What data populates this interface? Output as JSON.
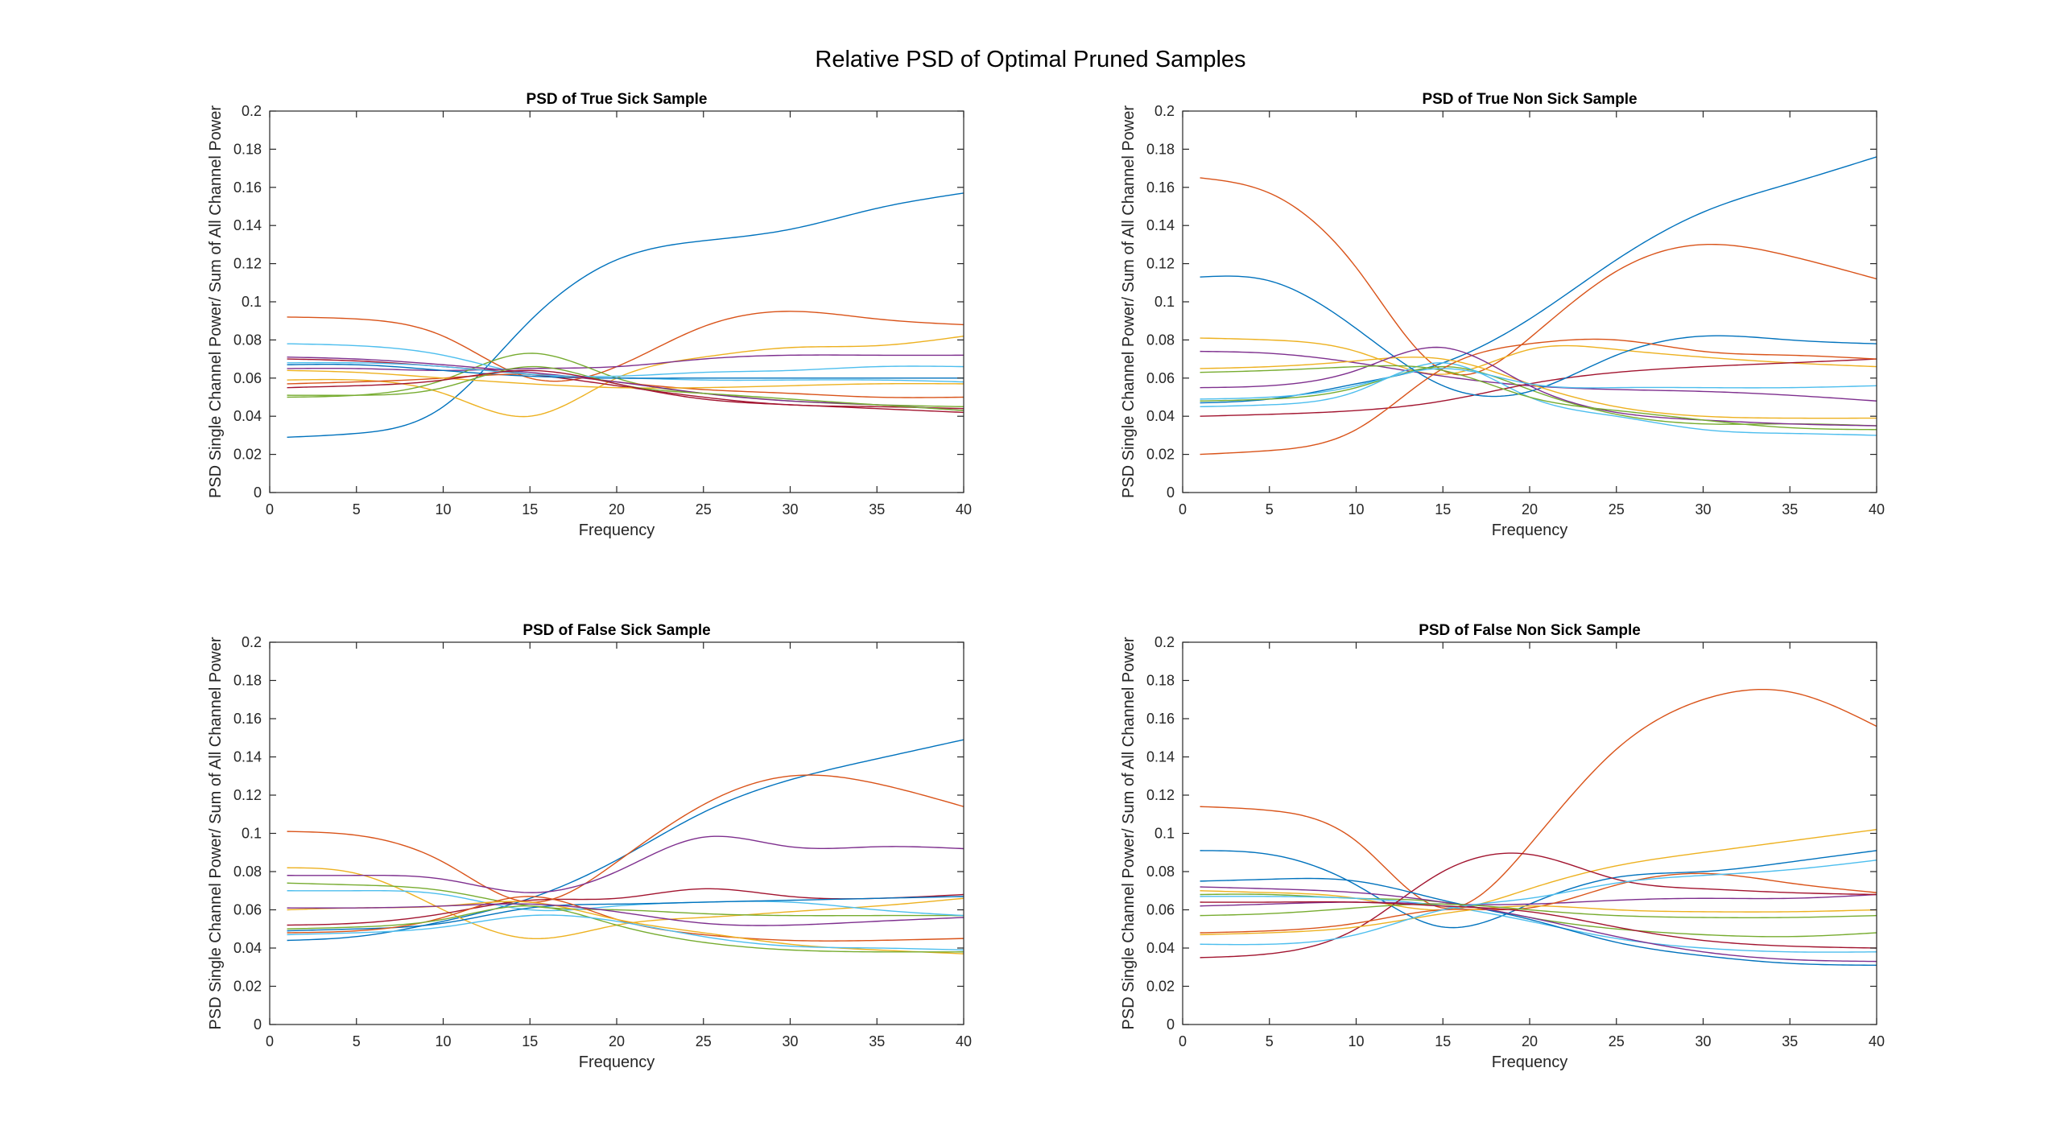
{
  "figure": {
    "suptitle": "Relative PSD of Optimal Pruned Samples"
  },
  "colors": [
    "#0072BD",
    "#D95319",
    "#EDB120",
    "#7E2F8E",
    "#77AC30",
    "#4DBEEE",
    "#A2142F"
  ],
  "chart_data": [
    {
      "type": "line",
      "title": "PSD of True Sick Sample",
      "xlabel": "Frequency",
      "ylabel": "PSD Single Channel Power/ Sum of All Channel Power",
      "xlim": [
        0,
        40
      ],
      "ylim": [
        0,
        0.2
      ],
      "xticks": [
        0,
        5,
        10,
        15,
        20,
        25,
        30,
        35,
        40
      ],
      "yticks": [
        0,
        0.02,
        0.04,
        0.06,
        0.08,
        0.1,
        0.12,
        0.14,
        0.16,
        0.18,
        0.2
      ],
      "ytick_labels": [
        "0",
        "0.02",
        "0.04",
        "0.06",
        "0.08",
        "0.1",
        "0.12",
        "0.14",
        "0.16",
        "0.18",
        "0.2"
      ],
      "grid": false,
      "x": [
        1,
        5,
        10,
        15,
        20,
        25,
        30,
        35,
        40
      ],
      "series": [
        {
          "values": [
            0.029,
            0.031,
            0.045,
            0.09,
            0.122,
            0.132,
            0.138,
            0.149,
            0.157
          ]
        },
        {
          "values": [
            0.092,
            0.091,
            0.082,
            0.06,
            0.066,
            0.087,
            0.095,
            0.091,
            0.088
          ]
        },
        {
          "values": [
            0.059,
            0.059,
            0.052,
            0.04,
            0.06,
            0.071,
            0.076,
            0.077,
            0.082
          ]
        },
        {
          "values": [
            0.065,
            0.065,
            0.064,
            0.065,
            0.066,
            0.07,
            0.072,
            0.072,
            0.072
          ]
        },
        {
          "values": [
            0.05,
            0.051,
            0.059,
            0.073,
            0.06,
            0.052,
            0.048,
            0.046,
            0.045
          ]
        },
        {
          "values": [
            0.078,
            0.077,
            0.072,
            0.062,
            0.06,
            0.059,
            0.059,
            0.059,
            0.058
          ]
        },
        {
          "values": [
            0.07,
            0.069,
            0.066,
            0.062,
            0.056,
            0.05,
            0.046,
            0.045,
            0.044
          ]
        },
        {
          "values": [
            0.067,
            0.067,
            0.064,
            0.061,
            0.06,
            0.06,
            0.06,
            0.06,
            0.06
          ]
        },
        {
          "values": [
            0.057,
            0.058,
            0.06,
            0.062,
            0.058,
            0.054,
            0.052,
            0.05,
            0.05
          ]
        },
        {
          "values": [
            0.064,
            0.063,
            0.06,
            0.057,
            0.055,
            0.055,
            0.056,
            0.057,
            0.057
          ]
        },
        {
          "values": [
            0.071,
            0.07,
            0.067,
            0.063,
            0.058,
            0.052,
            0.048,
            0.046,
            0.043
          ]
        },
        {
          "values": [
            0.051,
            0.051,
            0.055,
            0.066,
            0.057,
            0.052,
            0.049,
            0.046,
            0.043
          ]
        },
        {
          "values": [
            0.068,
            0.068,
            0.066,
            0.062,
            0.061,
            0.063,
            0.064,
            0.066,
            0.066
          ]
        },
        {
          "values": [
            0.055,
            0.056,
            0.059,
            0.064,
            0.057,
            0.049,
            0.046,
            0.044,
            0.042
          ]
        }
      ]
    },
    {
      "type": "line",
      "title": "PSD of True Non Sick Sample",
      "xlabel": "Frequency",
      "ylabel": "PSD Single Channel Power/ Sum of All Channel Power",
      "xlim": [
        0,
        40
      ],
      "ylim": [
        0,
        0.2
      ],
      "xticks": [
        0,
        5,
        10,
        15,
        20,
        25,
        30,
        35,
        40
      ],
      "yticks": [
        0,
        0.02,
        0.04,
        0.06,
        0.08,
        0.1,
        0.12,
        0.14,
        0.16,
        0.18,
        0.2
      ],
      "ytick_labels": [
        "0",
        "0.02",
        "0.04",
        "0.06",
        "0.08",
        "0.1",
        "0.12",
        "0.14",
        "0.16",
        "0.18",
        "0.2"
      ],
      "grid": false,
      "x": [
        1,
        5,
        10,
        15,
        20,
        25,
        30,
        35,
        40
      ],
      "series": [
        {
          "values": [
            0.047,
            0.049,
            0.057,
            0.068,
            0.091,
            0.122,
            0.147,
            0.162,
            0.176
          ]
        },
        {
          "values": [
            0.165,
            0.157,
            0.118,
            0.064,
            0.081,
            0.116,
            0.13,
            0.124,
            0.112
          ]
        },
        {
          "values": [
            0.081,
            0.08,
            0.074,
            0.062,
            0.075,
            0.075,
            0.071,
            0.068,
            0.066
          ]
        },
        {
          "values": [
            0.074,
            0.073,
            0.068,
            0.061,
            0.056,
            0.054,
            0.053,
            0.051,
            0.048
          ]
        },
        {
          "values": [
            0.048,
            0.049,
            0.055,
            0.066,
            0.054,
            0.041,
            0.036,
            0.036,
            0.035
          ]
        },
        {
          "values": [
            0.045,
            0.046,
            0.053,
            0.068,
            0.05,
            0.04,
            0.033,
            0.031,
            0.03
          ]
        },
        {
          "values": [
            0.04,
            0.041,
            0.043,
            0.048,
            0.057,
            0.063,
            0.066,
            0.068,
            0.07
          ]
        },
        {
          "values": [
            0.113,
            0.111,
            0.086,
            0.056,
            0.053,
            0.072,
            0.082,
            0.08,
            0.078
          ]
        },
        {
          "values": [
            0.02,
            0.022,
            0.033,
            0.065,
            0.078,
            0.08,
            0.074,
            0.072,
            0.07
          ]
        },
        {
          "values": [
            0.065,
            0.066,
            0.069,
            0.07,
            0.057,
            0.045,
            0.04,
            0.039,
            0.039
          ]
        },
        {
          "values": [
            0.055,
            0.056,
            0.064,
            0.076,
            0.056,
            0.042,
            0.038,
            0.036,
            0.035
          ]
        },
        {
          "values": [
            0.063,
            0.064,
            0.066,
            0.064,
            0.05,
            0.043,
            0.038,
            0.034,
            0.033
          ]
        },
        {
          "values": [
            0.049,
            0.05,
            0.056,
            0.065,
            0.057,
            0.055,
            0.055,
            0.055,
            0.056
          ]
        }
      ]
    },
    {
      "type": "line",
      "title": "PSD of False Sick Sample",
      "xlabel": "Frequency",
      "ylabel": "PSD Single Channel Power/ Sum of All Channel Power",
      "xlim": [
        0,
        40
      ],
      "ylim": [
        0,
        0.2
      ],
      "xticks": [
        0,
        5,
        10,
        15,
        20,
        25,
        30,
        35,
        40
      ],
      "yticks": [
        0,
        0.02,
        0.04,
        0.06,
        0.08,
        0.1,
        0.12,
        0.14,
        0.16,
        0.18,
        0.2
      ],
      "ytick_labels": [
        "0",
        "0.02",
        "0.04",
        "0.06",
        "0.08",
        "0.1",
        "0.12",
        "0.14",
        "0.16",
        "0.18",
        "0.2"
      ],
      "grid": false,
      "x": [
        1,
        5,
        10,
        15,
        20,
        25,
        30,
        35,
        40
      ],
      "series": [
        {
          "values": [
            0.044,
            0.046,
            0.054,
            0.066,
            0.086,
            0.111,
            0.128,
            0.139,
            0.149
          ]
        },
        {
          "values": [
            0.101,
            0.099,
            0.085,
            0.064,
            0.085,
            0.115,
            0.13,
            0.126,
            0.114
          ]
        },
        {
          "values": [
            0.082,
            0.079,
            0.06,
            0.045,
            0.052,
            0.056,
            0.059,
            0.062,
            0.066
          ]
        },
        {
          "values": [
            0.078,
            0.078,
            0.076,
            0.069,
            0.08,
            0.098,
            0.093,
            0.093,
            0.092
          ]
        },
        {
          "values": [
            0.074,
            0.073,
            0.07,
            0.062,
            0.06,
            0.058,
            0.057,
            0.057,
            0.057
          ]
        },
        {
          "values": [
            0.07,
            0.07,
            0.068,
            0.06,
            0.062,
            0.064,
            0.064,
            0.06,
            0.057
          ]
        },
        {
          "values": [
            0.052,
            0.053,
            0.058,
            0.065,
            0.066,
            0.071,
            0.067,
            0.066,
            0.068
          ]
        },
        {
          "values": [
            0.049,
            0.05,
            0.053,
            0.061,
            0.063,
            0.064,
            0.065,
            0.066,
            0.067
          ]
        },
        {
          "values": [
            0.048,
            0.049,
            0.056,
            0.067,
            0.055,
            0.047,
            0.044,
            0.044,
            0.045
          ]
        },
        {
          "values": [
            0.06,
            0.061,
            0.062,
            0.064,
            0.055,
            0.048,
            0.042,
            0.039,
            0.037
          ]
        },
        {
          "values": [
            0.061,
            0.061,
            0.062,
            0.063,
            0.059,
            0.053,
            0.052,
            0.054,
            0.056
          ]
        },
        {
          "values": [
            0.05,
            0.051,
            0.055,
            0.062,
            0.052,
            0.043,
            0.039,
            0.038,
            0.038
          ]
        },
        {
          "values": [
            0.047,
            0.048,
            0.051,
            0.057,
            0.054,
            0.046,
            0.041,
            0.04,
            0.039
          ]
        }
      ]
    },
    {
      "type": "line",
      "title": "PSD of False Non Sick Sample",
      "xlabel": "Frequency",
      "ylabel": "PSD Single Channel Power/ Sum of All Channel Power",
      "xlim": [
        0,
        40
      ],
      "ylim": [
        0,
        0.2
      ],
      "xticks": [
        0,
        5,
        10,
        15,
        20,
        25,
        30,
        35,
        40
      ],
      "yticks": [
        0,
        0.02,
        0.04,
        0.06,
        0.08,
        0.1,
        0.12,
        0.14,
        0.16,
        0.18,
        0.2
      ],
      "ytick_labels": [
        "0",
        "0.02",
        "0.04",
        "0.06",
        "0.08",
        "0.1",
        "0.12",
        "0.14",
        "0.16",
        "0.18",
        "0.2"
      ],
      "grid": false,
      "x": [
        1,
        5,
        10,
        15,
        20,
        25,
        30,
        35,
        40
      ],
      "series": [
        {
          "values": [
            0.091,
            0.089,
            0.073,
            0.051,
            0.063,
            0.077,
            0.08,
            0.085,
            0.091
          ]
        },
        {
          "values": [
            0.114,
            0.112,
            0.096,
            0.061,
            0.094,
            0.144,
            0.17,
            0.174,
            0.156
          ]
        },
        {
          "values": [
            0.07,
            0.069,
            0.066,
            0.06,
            0.071,
            0.083,
            0.09,
            0.096,
            0.102
          ]
        },
        {
          "values": [
            0.062,
            0.063,
            0.064,
            0.063,
            0.063,
            0.065,
            0.066,
            0.066,
            0.068
          ]
        },
        {
          "values": [
            0.068,
            0.068,
            0.066,
            0.064,
            0.056,
            0.05,
            0.047,
            0.046,
            0.048
          ]
        },
        {
          "values": [
            0.067,
            0.067,
            0.066,
            0.062,
            0.054,
            0.045,
            0.04,
            0.038,
            0.038
          ]
        },
        {
          "values": [
            0.035,
            0.037,
            0.05,
            0.08,
            0.089,
            0.076,
            0.071,
            0.069,
            0.068
          ]
        },
        {
          "values": [
            0.075,
            0.076,
            0.075,
            0.065,
            0.055,
            0.043,
            0.036,
            0.032,
            0.031
          ]
        },
        {
          "values": [
            0.048,
            0.049,
            0.053,
            0.06,
            0.061,
            0.073,
            0.079,
            0.074,
            0.069
          ]
        },
        {
          "values": [
            0.047,
            0.048,
            0.051,
            0.058,
            0.062,
            0.06,
            0.059,
            0.059,
            0.06
          ]
        },
        {
          "values": [
            0.072,
            0.071,
            0.069,
            0.064,
            0.056,
            0.046,
            0.038,
            0.034,
            0.033
          ]
        },
        {
          "values": [
            0.057,
            0.058,
            0.061,
            0.063,
            0.06,
            0.057,
            0.056,
            0.056,
            0.057
          ]
        },
        {
          "values": [
            0.042,
            0.042,
            0.047,
            0.06,
            0.066,
            0.074,
            0.078,
            0.081,
            0.086
          ]
        },
        {
          "values": [
            0.064,
            0.064,
            0.064,
            0.062,
            0.059,
            0.051,
            0.044,
            0.041,
            0.04
          ]
        }
      ]
    }
  ]
}
